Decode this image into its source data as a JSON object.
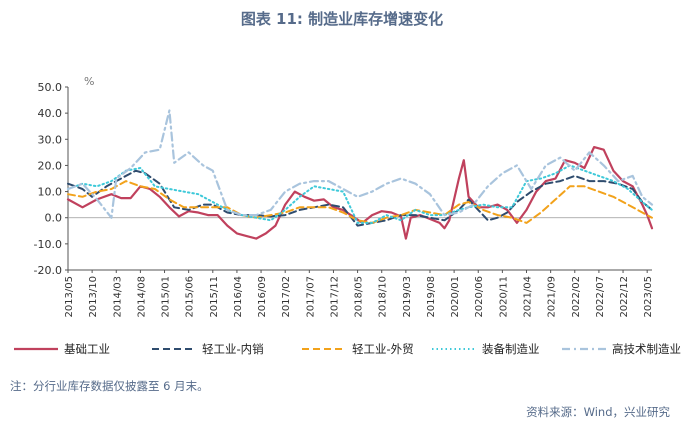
{
  "title": "图表 11: 制造业库存增速变化",
  "note": "注：分行业库存数据仅披露至 6 月末。",
  "source": "资料来源：Wind，兴业研究",
  "chart_data": {
    "type": "line",
    "title": "图表 11: 制造业库存增速变化",
    "ylabel": "%",
    "xlabel": "",
    "ylim": [
      -20,
      50
    ],
    "yticks": [
      "-20.0",
      "-10.0",
      "0.0",
      "10.0",
      "20.0",
      "30.0",
      "40.0",
      "50.0"
    ],
    "x_start": "2013/05",
    "x_end": "2023/06",
    "x_tick_labels": [
      "2013/05",
      "2013/10",
      "2014/03",
      "2014/08",
      "2015/01",
      "2015/06",
      "2015/11",
      "2016/04",
      "2016/09",
      "2017/02",
      "2017/07",
      "2017/12",
      "2018/05",
      "2018/10",
      "2019/03",
      "2019/08",
      "2020/01",
      "2020/06",
      "2020/11",
      "2021/04",
      "2021/09",
      "2022/02",
      "2022/07",
      "2022/12",
      "2023/05"
    ],
    "grid": false,
    "legend_position": "bottom",
    "series": [
      {
        "name": "基础工业",
        "color": "#c0415d",
        "style": "solid",
        "points": [
          [
            "2013/05",
            7
          ],
          [
            "2013/08",
            4
          ],
          [
            "2013/11",
            7
          ],
          [
            "2014/02",
            9
          ],
          [
            "2014/04",
            7.5
          ],
          [
            "2014/06",
            7.5
          ],
          [
            "2014/08",
            12
          ],
          [
            "2014/10",
            11
          ],
          [
            "2014/12",
            8
          ],
          [
            "2015/02",
            4
          ],
          [
            "2015/04",
            0.5
          ],
          [
            "2015/06",
            2.5
          ],
          [
            "2015/08",
            2
          ],
          [
            "2015/10",
            1
          ],
          [
            "2015/12",
            1
          ],
          [
            "2016/02",
            -3
          ],
          [
            "2016/04",
            -6
          ],
          [
            "2016/06",
            -7
          ],
          [
            "2016/08",
            -8
          ],
          [
            "2016/10",
            -6
          ],
          [
            "2016/12",
            -3
          ],
          [
            "2017/02",
            5
          ],
          [
            "2017/04",
            10
          ],
          [
            "2017/06",
            8
          ],
          [
            "2017/08",
            6.5
          ],
          [
            "2017/10",
            7
          ],
          [
            "2017/12",
            4
          ],
          [
            "2018/02",
            3
          ],
          [
            "2018/04",
            0.5
          ],
          [
            "2018/06",
            -2
          ],
          [
            "2018/08",
            1
          ],
          [
            "2018/10",
            2.5
          ],
          [
            "2018/12",
            2
          ],
          [
            "2019/02",
            0.5
          ],
          [
            "2019/03",
            -8
          ],
          [
            "2019/04",
            0
          ],
          [
            "2019/06",
            1
          ],
          [
            "2019/08",
            -0.5
          ],
          [
            "2019/10",
            -2
          ],
          [
            "2019/11",
            -4
          ],
          [
            "2019/12",
            -1
          ],
          [
            "2020/02",
            15
          ],
          [
            "2020/03",
            22
          ],
          [
            "2020/04",
            8
          ],
          [
            "2020/06",
            4
          ],
          [
            "2020/08",
            4
          ],
          [
            "2020/10",
            5
          ],
          [
            "2020/12",
            3
          ],
          [
            "2021/02",
            -2
          ],
          [
            "2021/04",
            3
          ],
          [
            "2021/06",
            10
          ],
          [
            "2021/08",
            14
          ],
          [
            "2021/10",
            15
          ],
          [
            "2021/12",
            22
          ],
          [
            "2022/02",
            21
          ],
          [
            "2022/04",
            19
          ],
          [
            "2022/06",
            27
          ],
          [
            "2022/08",
            26
          ],
          [
            "2022/10",
            18
          ],
          [
            "2022/12",
            14
          ],
          [
            "2023/02",
            12
          ],
          [
            "2023/04",
            5
          ],
          [
            "2023/05",
            1
          ],
          [
            "2023/06",
            -4
          ]
        ]
      },
      {
        "name": "轻工业-内销",
        "color": "#2f4c6e",
        "style": "dash",
        "points": [
          [
            "2013/05",
            13
          ],
          [
            "2013/08",
            11
          ],
          [
            "2013/10",
            8
          ],
          [
            "2014/01",
            12
          ],
          [
            "2014/04",
            15
          ],
          [
            "2014/07",
            18
          ],
          [
            "2014/09",
            17
          ],
          [
            "2014/12",
            13
          ],
          [
            "2015/03",
            4
          ],
          [
            "2015/06",
            3
          ],
          [
            "2015/09",
            5
          ],
          [
            "2015/11",
            5
          ],
          [
            "2016/02",
            2
          ],
          [
            "2016/05",
            1
          ],
          [
            "2016/08",
            1
          ],
          [
            "2016/11",
            0.5
          ],
          [
            "2017/02",
            1
          ],
          [
            "2017/05",
            3
          ],
          [
            "2017/08",
            4
          ],
          [
            "2017/11",
            5
          ],
          [
            "2018/02",
            4
          ],
          [
            "2018/05",
            -3
          ],
          [
            "2018/08",
            -2
          ],
          [
            "2018/11",
            -1
          ],
          [
            "2019/02",
            1
          ],
          [
            "2019/05",
            1
          ],
          [
            "2019/08",
            0
          ],
          [
            "2019/11",
            -1
          ],
          [
            "2020/02",
            3
          ],
          [
            "2020/04",
            7
          ],
          [
            "2020/06",
            3
          ],
          [
            "2020/08",
            -1
          ],
          [
            "2020/10",
            0
          ],
          [
            "2020/12",
            2
          ],
          [
            "2021/02",
            6
          ],
          [
            "2021/05",
            10
          ],
          [
            "2021/08",
            13
          ],
          [
            "2021/11",
            14
          ],
          [
            "2022/02",
            16
          ],
          [
            "2022/05",
            14
          ],
          [
            "2022/08",
            14
          ],
          [
            "2022/11",
            13
          ],
          [
            "2023/02",
            11
          ],
          [
            "2023/04",
            6
          ],
          [
            "2023/06",
            3
          ]
        ]
      },
      {
        "name": "轻工业-外贸",
        "color": "#f2a21b",
        "style": "dash",
        "points": [
          [
            "2013/05",
            9
          ],
          [
            "2013/08",
            8
          ],
          [
            "2013/11",
            10
          ],
          [
            "2014/02",
            11
          ],
          [
            "2014/05",
            14
          ],
          [
            "2014/08",
            12
          ],
          [
            "2014/11",
            11
          ],
          [
            "2015/02",
            7
          ],
          [
            "2015/05",
            4
          ],
          [
            "2015/08",
            4
          ],
          [
            "2015/11",
            4
          ],
          [
            "2016/02",
            4
          ],
          [
            "2016/05",
            1
          ],
          [
            "2016/08",
            0
          ],
          [
            "2016/11",
            1
          ],
          [
            "2017/02",
            2
          ],
          [
            "2017/05",
            4
          ],
          [
            "2017/08",
            4
          ],
          [
            "2017/11",
            4
          ],
          [
            "2018/02",
            2
          ],
          [
            "2018/05",
            -1
          ],
          [
            "2018/08",
            -2
          ],
          [
            "2018/11",
            0
          ],
          [
            "2019/02",
            1
          ],
          [
            "2019/05",
            3
          ],
          [
            "2019/08",
            2
          ],
          [
            "2019/11",
            1
          ],
          [
            "2020/02",
            5
          ],
          [
            "2020/04",
            6
          ],
          [
            "2020/07",
            3
          ],
          [
            "2020/10",
            1
          ],
          [
            "2021/01",
            0
          ],
          [
            "2021/04",
            -2
          ],
          [
            "2021/07",
            2
          ],
          [
            "2021/10",
            7
          ],
          [
            "2022/01",
            12
          ],
          [
            "2022/04",
            12
          ],
          [
            "2022/07",
            10
          ],
          [
            "2022/10",
            8
          ],
          [
            "2023/01",
            5
          ],
          [
            "2023/04",
            2
          ],
          [
            "2023/06",
            0
          ]
        ]
      },
      {
        "name": "装备制造业",
        "color": "#3ec9d9",
        "style": "dot",
        "points": [
          [
            "2013/05",
            11
          ],
          [
            "2013/08",
            13
          ],
          [
            "2013/11",
            12
          ],
          [
            "2014/02",
            14
          ],
          [
            "2014/05",
            18
          ],
          [
            "2014/08",
            19
          ],
          [
            "2014/11",
            12
          ],
          [
            "2015/02",
            11
          ],
          [
            "2015/05",
            10
          ],
          [
            "2015/08",
            9
          ],
          [
            "2015/11",
            6
          ],
          [
            "2016/02",
            3
          ],
          [
            "2016/05",
            1
          ],
          [
            "2016/08",
            0
          ],
          [
            "2016/11",
            -1
          ],
          [
            "2017/02",
            3
          ],
          [
            "2017/05",
            8
          ],
          [
            "2017/08",
            12
          ],
          [
            "2017/11",
            11
          ],
          [
            "2018/02",
            10
          ],
          [
            "2018/05",
            -2
          ],
          [
            "2018/08",
            -2
          ],
          [
            "2018/11",
            1
          ],
          [
            "2019/02",
            -1
          ],
          [
            "2019/05",
            3
          ],
          [
            "2019/08",
            1
          ],
          [
            "2019/11",
            1
          ],
          [
            "2020/02",
            3
          ],
          [
            "2020/04",
            4
          ],
          [
            "2020/07",
            5
          ],
          [
            "2020/10",
            4
          ],
          [
            "2021/01",
            4
          ],
          [
            "2021/04",
            14
          ],
          [
            "2021/07",
            15
          ],
          [
            "2021/10",
            17
          ],
          [
            "2022/01",
            20
          ],
          [
            "2022/04",
            18
          ],
          [
            "2022/07",
            16
          ],
          [
            "2022/10",
            14
          ],
          [
            "2023/01",
            11
          ],
          [
            "2023/04",
            6
          ],
          [
            "2023/06",
            3
          ]
        ]
      },
      {
        "name": "高技术制造业",
        "color": "#a9c4dd",
        "style": "dashdot",
        "points": [
          [
            "2013/05",
            11
          ],
          [
            "2013/08",
            13
          ],
          [
            "2013/11",
            7
          ],
          [
            "2014/02",
            0
          ],
          [
            "2014/03",
            15
          ],
          [
            "2014/06",
            19
          ],
          [
            "2014/09",
            25
          ],
          [
            "2014/12",
            26
          ],
          [
            "2015/02",
            41
          ],
          [
            "2015/03",
            21
          ],
          [
            "2015/06",
            25
          ],
          [
            "2015/09",
            20
          ],
          [
            "2015/11",
            18
          ],
          [
            "2016/02",
            3
          ],
          [
            "2016/05",
            1
          ],
          [
            "2016/08",
            1
          ],
          [
            "2016/11",
            3
          ],
          [
            "2017/02",
            10
          ],
          [
            "2017/05",
            13
          ],
          [
            "2017/08",
            14
          ],
          [
            "2017/11",
            14
          ],
          [
            "2018/02",
            11
          ],
          [
            "2018/05",
            8
          ],
          [
            "2018/08",
            10
          ],
          [
            "2018/11",
            13
          ],
          [
            "2019/02",
            15
          ],
          [
            "2019/05",
            13
          ],
          [
            "2019/08",
            9
          ],
          [
            "2019/11",
            1
          ],
          [
            "2020/02",
            2
          ],
          [
            "2020/05",
            5
          ],
          [
            "2020/08",
            12
          ],
          [
            "2020/11",
            17
          ],
          [
            "2021/02",
            20
          ],
          [
            "2021/05",
            11
          ],
          [
            "2021/08",
            20
          ],
          [
            "2021/11",
            23
          ],
          [
            "2022/02",
            18
          ],
          [
            "2022/05",
            25
          ],
          [
            "2022/08",
            20
          ],
          [
            "2022/11",
            14
          ],
          [
            "2023/02",
            16
          ],
          [
            "2023/04",
            8
          ],
          [
            "2023/06",
            5
          ]
        ]
      }
    ]
  }
}
